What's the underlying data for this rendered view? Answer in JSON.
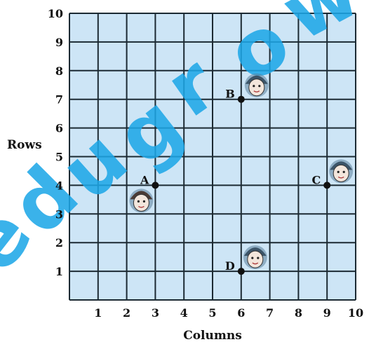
{
  "chart_data": {
    "type": "scatter",
    "xlabel": "Columns",
    "ylabel": "Rows",
    "xlim": [
      0,
      10
    ],
    "ylim": [
      0,
      10
    ],
    "x_ticks": [
      "1",
      "2",
      "3",
      "4",
      "5",
      "6",
      "7",
      "8",
      "9",
      "10"
    ],
    "y_ticks": [
      "1",
      "2",
      "3",
      "4",
      "5",
      "6",
      "7",
      "8",
      "9",
      "10"
    ],
    "grid": true,
    "points": [
      {
        "label": "A",
        "x": 3,
        "y": 4
      },
      {
        "label": "B",
        "x": 6,
        "y": 7
      },
      {
        "label": "C",
        "x": 9,
        "y": 4
      },
      {
        "label": "D",
        "x": 6,
        "y": 1
      }
    ],
    "watermark": "edugrow",
    "colors": {
      "background": "#cde5f6",
      "grid": "#1c2a33",
      "watermark": "#1ea7e8",
      "point": "#111111"
    }
  }
}
